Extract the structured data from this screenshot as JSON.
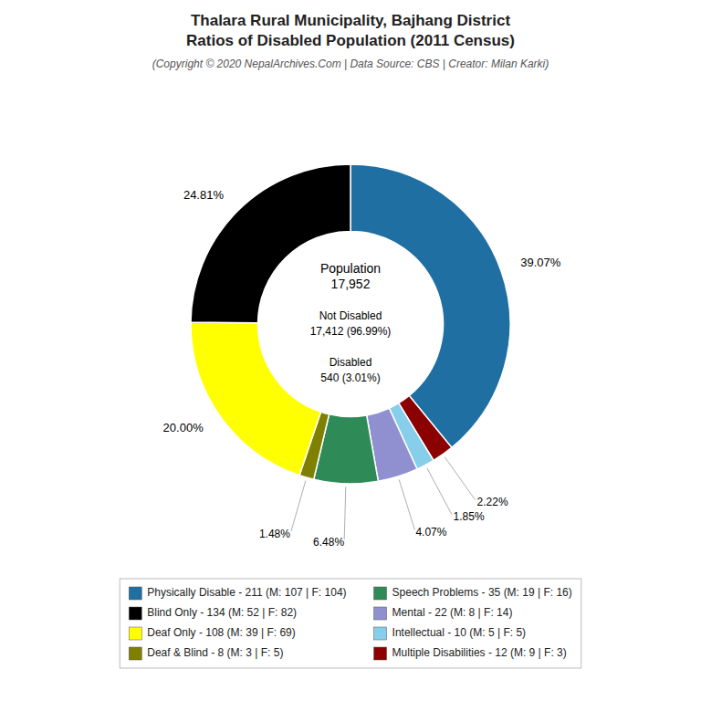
{
  "chart_data": {
    "type": "donut",
    "title": [
      "Thalara Rural Municipality, Bajhang District",
      "Ratios of Disabled Population (2011 Census)"
    ],
    "subtitle": "(Copyright © 2020 NepalArchives.Com | Data Source: CBS | Creator: Milan Karki)",
    "categories": [
      "Physically Disable - 211 (M: 107 | F: 104)",
      "Multiple Disabilities - 12 (M: 9 | F: 3)",
      "Intellectual - 10 (M: 5 | F: 5)",
      "Mental - 22 (M: 8 | F: 14)",
      "Speech Problems - 35 (M: 19 | F: 16)",
      "Deaf & Blind - 8 (M: 3 | F: 5)",
      "Deaf Only - 108 (M: 39 | F: 69)",
      "Blind Only - 134 (M: 52 | F: 82)"
    ],
    "values": [
      39.07,
      2.22,
      1.85,
      4.07,
      6.48,
      1.48,
      20.0,
      24.81
    ],
    "value_labels": [
      "39.07%",
      "2.22%",
      "1.85%",
      "4.07%",
      "6.48%",
      "1.48%",
      "20.00%",
      "24.81%"
    ],
    "colors": [
      "#1f6fa3",
      "#8b0000",
      "#87ceeb",
      "#9090d0",
      "#2e8b57",
      "#808000",
      "#ffff00",
      "#000000"
    ],
    "annotations": [
      "Population",
      "17,952",
      "Not Disabled",
      "17,412 (96.99%)",
      "Disabled",
      "540 (3.01%)"
    ],
    "data_labels": true,
    "legend": "bottom"
  }
}
